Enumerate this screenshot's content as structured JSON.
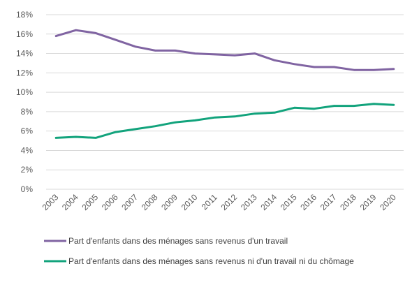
{
  "chart_data": {
    "type": "line",
    "x": [
      "2003",
      "2004",
      "2005",
      "2006",
      "2007",
      "2008",
      "2009",
      "2010",
      "2011",
      "2012",
      "2013",
      "2014",
      "2015",
      "2016",
      "2017",
      "2018",
      "2019",
      "2020"
    ],
    "y_ticks": [
      "0%",
      "2%",
      "4%",
      "6%",
      "8%",
      "10%",
      "12%",
      "14%",
      "16%",
      "18%"
    ],
    "ylim": [
      0,
      18
    ],
    "grid": "horizontal",
    "legend_position": "bottom",
    "series": [
      {
        "name": "Part d'enfants dans des ménages sans revenus d'un travail",
        "color": "#8064A2",
        "values": [
          15.8,
          16.4,
          16.1,
          15.4,
          14.7,
          14.3,
          14.3,
          14.0,
          13.9,
          13.8,
          14.0,
          13.3,
          12.9,
          12.6,
          12.6,
          12.3,
          12.3,
          12.4
        ]
      },
      {
        "name": "Part d'enfants dans des ménages sans revenus ni d'un travail ni du chômage",
        "color": "#12A37C",
        "values": [
          5.3,
          5.4,
          5.3,
          5.9,
          6.2,
          6.5,
          6.9,
          7.1,
          7.4,
          7.5,
          7.8,
          7.9,
          8.4,
          8.3,
          8.6,
          8.6,
          8.8,
          8.7
        ]
      }
    ]
  }
}
